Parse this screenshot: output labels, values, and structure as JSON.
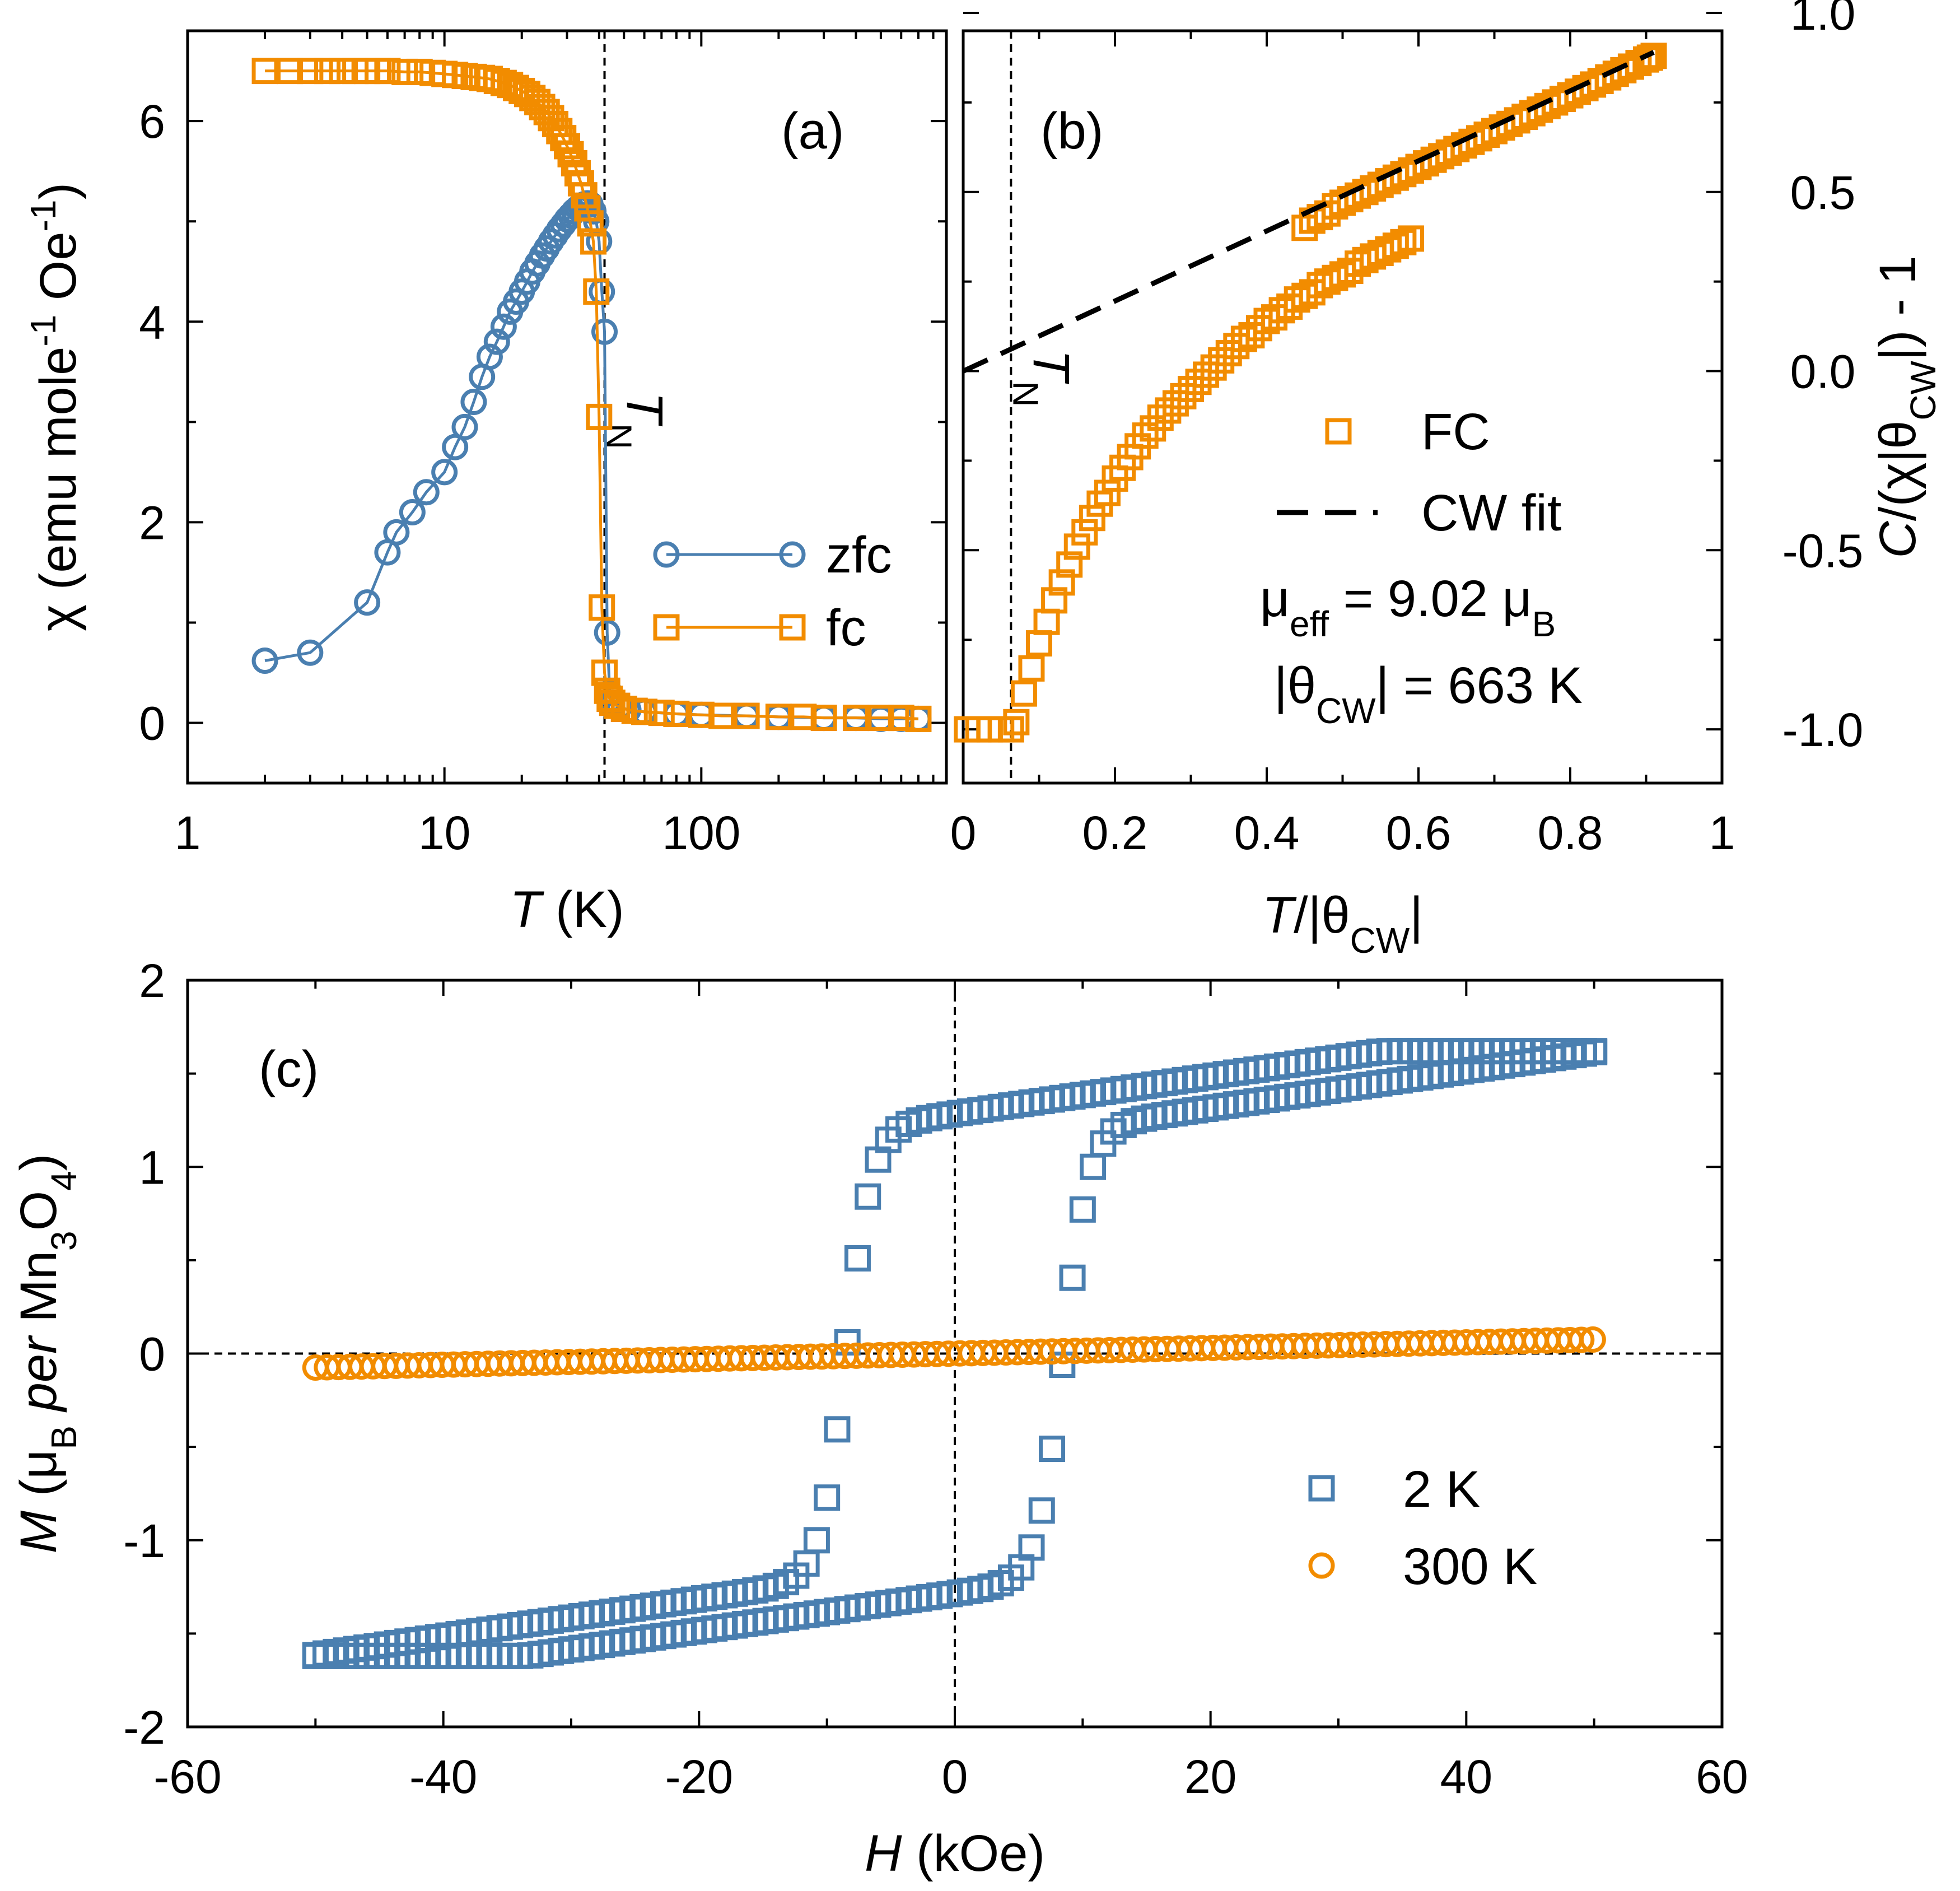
{
  "colors": {
    "blue": "#4a7fb0",
    "orange": "#f28c00",
    "black": "#000000"
  },
  "chart_data": [
    {
      "id": "a",
      "type": "line",
      "panel_label": "(a)",
      "xlabel_var": "T",
      "xlabel_unit": " (K)",
      "ylabel": "χ (emu mole",
      "ylabel_sup1": "-1",
      "ylabel_mid": " Oe",
      "ylabel_sup2": "-1",
      "ylabel_end": ")",
      "xscale": "log",
      "xlim": [
        1,
        900
      ],
      "ylim": [
        -0.6,
        6.9
      ],
      "xticks": [
        {
          "v": 1,
          "label": "1"
        },
        {
          "v": 10,
          "label": "10"
        },
        {
          "v": 100,
          "label": "100"
        }
      ],
      "yticks": [
        {
          "v": 0,
          "label": "0"
        },
        {
          "v": 2,
          "label": "2"
        },
        {
          "v": 4,
          "label": "4"
        },
        {
          "v": 6,
          "label": "6"
        }
      ],
      "vline": 42,
      "vline_label": "T",
      "vline_sub": "N",
      "legend_position": "lower-right",
      "series": [
        {
          "name": "zfc",
          "marker": "circle",
          "color": "#4a7fb0",
          "connected": true,
          "x": [
            2,
            3,
            5,
            6,
            6.5,
            7.5,
            8.5,
            10,
            11,
            12,
            13,
            14,
            15,
            16,
            17,
            18,
            19,
            20,
            21,
            22,
            23,
            24,
            25,
            26,
            27,
            28,
            29,
            30,
            31,
            32,
            33,
            34,
            35,
            36,
            37,
            38,
            39,
            40,
            41,
            42,
            43,
            44,
            45,
            48,
            52,
            60,
            80,
            100,
            150,
            200,
            300,
            400,
            500,
            600,
            700
          ],
          "y": [
            0.62,
            0.7,
            1.2,
            1.7,
            1.9,
            2.1,
            2.3,
            2.5,
            2.75,
            2.95,
            3.2,
            3.45,
            3.65,
            3.8,
            3.95,
            4.1,
            4.2,
            4.3,
            4.4,
            4.5,
            4.58,
            4.66,
            4.73,
            4.8,
            4.86,
            4.92,
            4.97,
            5.02,
            5.06,
            5.1,
            5.13,
            5.15,
            5.17,
            5.18,
            5.17,
            5.1,
            5.0,
            4.8,
            4.3,
            3.9,
            0.9,
            0.3,
            0.2,
            0.16,
            0.13,
            0.11,
            0.09,
            0.08,
            0.07,
            0.06,
            0.05,
            0.05,
            0.04,
            0.04,
            0.04
          ]
        },
        {
          "name": "fc",
          "marker": "square",
          "color": "#f28c00",
          "connected": true,
          "x": [
            2,
            2.5,
            3,
            3.5,
            4,
            4.5,
            5,
            5.5,
            6,
            7,
            8,
            9,
            10,
            11,
            12,
            13,
            14,
            15,
            16,
            17,
            18,
            19,
            20,
            21,
            22,
            23,
            24,
            25,
            26,
            27,
            28,
            29,
            30,
            31,
            32,
            33,
            34,
            35,
            36,
            37,
            38,
            39,
            40,
            41,
            42,
            43,
            44,
            45,
            47,
            50,
            55,
            60,
            70,
            80,
            100,
            120,
            150,
            200,
            250,
            300,
            400,
            500,
            600,
            700
          ],
          "y": [
            6.5,
            6.5,
            6.5,
            6.5,
            6.5,
            6.5,
            6.5,
            6.5,
            6.5,
            6.49,
            6.49,
            6.48,
            6.47,
            6.46,
            6.45,
            6.44,
            6.43,
            6.42,
            6.4,
            6.38,
            6.36,
            6.33,
            6.3,
            6.27,
            6.23,
            6.19,
            6.14,
            6.09,
            6.03,
            5.97,
            5.9,
            5.83,
            5.75,
            5.67,
            5.58,
            5.48,
            5.38,
            5.26,
            5.13,
            4.98,
            4.8,
            4.3,
            3.05,
            1.15,
            0.5,
            0.32,
            0.24,
            0.2,
            0.17,
            0.14,
            0.12,
            0.11,
            0.1,
            0.09,
            0.08,
            0.07,
            0.07,
            0.06,
            0.06,
            0.05,
            0.05,
            0.05,
            0.05,
            0.04
          ]
        }
      ]
    },
    {
      "id": "b",
      "type": "scatter",
      "panel_label": "(b)",
      "xlabel_var": "T",
      "xlabel_mid": "/|θ",
      "xlabel_sub": "CW",
      "xlabel_end": "|",
      "ylabel_var": "C",
      "ylabel_mid": "/(χ|θ",
      "ylabel_sub": "CW",
      "ylabel_end": "|) - 1",
      "xlim": [
        0,
        1
      ],
      "ylim": [
        -1.15,
        0.95
      ],
      "xticks": [
        {
          "v": 0,
          "label": "0"
        },
        {
          "v": 0.2,
          "label": "0.2"
        },
        {
          "v": 0.4,
          "label": "0.4"
        },
        {
          "v": 0.6,
          "label": "0.6"
        },
        {
          "v": 0.8,
          "label": "0.8"
        },
        {
          "v": 1,
          "label": "1"
        }
      ],
      "yticks": [
        {
          "v": -1,
          "label": "-1.0"
        },
        {
          "v": -0.5,
          "label": "-0.5"
        },
        {
          "v": 0,
          "label": "0.0"
        },
        {
          "v": 0.5,
          "label": "0.5"
        },
        {
          "v": 1,
          "label": "1.0"
        }
      ],
      "vline": 0.063,
      "vline_label": "T",
      "vline_sub": "N",
      "legend_position": "lower-right",
      "mu_eff": "9.02",
      "theta_cw": "663 K",
      "series": [
        {
          "name": "FC",
          "marker": "square",
          "color": "#f28c00",
          "connected": false,
          "x": [
            0.005,
            0.02,
            0.035,
            0.05,
            0.063,
            0.07,
            0.08,
            0.09,
            0.1,
            0.11,
            0.12,
            0.13,
            0.14,
            0.15,
            0.16,
            0.17,
            0.18,
            0.19,
            0.2,
            0.21,
            0.22,
            0.23,
            0.24,
            0.25,
            0.26,
            0.27,
            0.28,
            0.29,
            0.3,
            0.31,
            0.32,
            0.33,
            0.34,
            0.35,
            0.36,
            0.37,
            0.38,
            0.39,
            0.4,
            0.41,
            0.42,
            0.43,
            0.44,
            0.45,
            0.46,
            0.47,
            0.48,
            0.49,
            0.5,
            0.51,
            0.52,
            0.53,
            0.54,
            0.55,
            0.56,
            0.57,
            0.58,
            0.59,
            0.45,
            0.46,
            0.47,
            0.48,
            0.49,
            0.5,
            0.51,
            0.52,
            0.53,
            0.54,
            0.55,
            0.56,
            0.57,
            0.58,
            0.59,
            0.6,
            0.61,
            0.62,
            0.63,
            0.64,
            0.65,
            0.66,
            0.67,
            0.68,
            0.69,
            0.7,
            0.71,
            0.72,
            0.73,
            0.74,
            0.75,
            0.76,
            0.77,
            0.78,
            0.79,
            0.8,
            0.81,
            0.82,
            0.83,
            0.84,
            0.85,
            0.86,
            0.87,
            0.88,
            0.89,
            0.9,
            0.905,
            0.91
          ],
          "y": [
            -1.0,
            -1.0,
            -1.0,
            -1.0,
            -1.0,
            -0.98,
            -0.9,
            -0.83,
            -0.76,
            -0.7,
            -0.64,
            -0.59,
            -0.54,
            -0.49,
            -0.45,
            -0.41,
            -0.37,
            -0.34,
            -0.3,
            -0.27,
            -0.24,
            -0.21,
            -0.18,
            -0.16,
            -0.13,
            -0.11,
            -0.09,
            -0.07,
            -0.05,
            -0.03,
            -0.01,
            0.01,
            0.03,
            0.05,
            0.07,
            0.09,
            0.1,
            0.12,
            0.14,
            0.15,
            0.17,
            0.18,
            0.2,
            0.21,
            0.22,
            0.24,
            0.25,
            0.26,
            0.27,
            0.28,
            0.3,
            0.31,
            0.32,
            0.33,
            0.34,
            0.35,
            0.36,
            0.37,
            0.4,
            0.42,
            0.43,
            0.44,
            0.46,
            0.47,
            0.48,
            0.49,
            0.5,
            0.51,
            0.52,
            0.53,
            0.54,
            0.55,
            0.56,
            0.57,
            0.58,
            0.59,
            0.6,
            0.61,
            0.62,
            0.63,
            0.64,
            0.65,
            0.66,
            0.67,
            0.68,
            0.69,
            0.7,
            0.71,
            0.72,
            0.73,
            0.74,
            0.75,
            0.76,
            0.77,
            0.78,
            0.79,
            0.8,
            0.81,
            0.82,
            0.83,
            0.84,
            0.85,
            0.86,
            0.87,
            0.875,
            0.88
          ]
        },
        {
          "name": "CW fit",
          "style": "dashed-line",
          "color": "#000000",
          "x": [
            0,
            0.91
          ],
          "y": [
            0.0,
            0.89
          ]
        }
      ]
    },
    {
      "id": "c",
      "type": "scatter",
      "panel_label": "(c)",
      "xlabel_var": "H",
      "xlabel_unit": " (kOe)",
      "ylabel_var": "M",
      "ylabel_a": " (μ",
      "ylabel_sub1": "B",
      "ylabel_per": " per ",
      "ylabel_b": "Mn",
      "ylabel_sub2": "3",
      "ylabel_c": "O",
      "ylabel_sub3": "4",
      "ylabel_end": ")",
      "xlim": [
        -60,
        60
      ],
      "ylim": [
        -2,
        2
      ],
      "xticks": [
        {
          "v": -60,
          "label": "-60"
        },
        {
          "v": -40,
          "label": "-40"
        },
        {
          "v": -20,
          "label": "-20"
        },
        {
          "v": 0,
          "label": "0"
        },
        {
          "v": 20,
          "label": "20"
        },
        {
          "v": 40,
          "label": "40"
        },
        {
          "v": 60,
          "label": "60"
        }
      ],
      "yticks": [
        {
          "v": -2,
          "label": "-2"
        },
        {
          "v": -1,
          "label": "-1"
        },
        {
          "v": 0,
          "label": "0"
        },
        {
          "v": 1,
          "label": "1"
        },
        {
          "v": 2,
          "label": "2"
        }
      ],
      "hline": 0,
      "vline": 0,
      "legend_position": "lower-right",
      "series": [
        {
          "name": "2 K",
          "marker": "square",
          "color": "#4a7fb0",
          "connected": false,
          "hysteresis": {
            "hc": 8.5,
            "width": 2.0,
            "mr": 1.2,
            "ms": 1.62,
            "hmax": 50
          }
        },
        {
          "name": "300 K",
          "marker": "circle",
          "color": "#f28c00",
          "connected": false,
          "linear": {
            "slope": 0.0015,
            "hmax": 50
          }
        }
      ]
    }
  ]
}
